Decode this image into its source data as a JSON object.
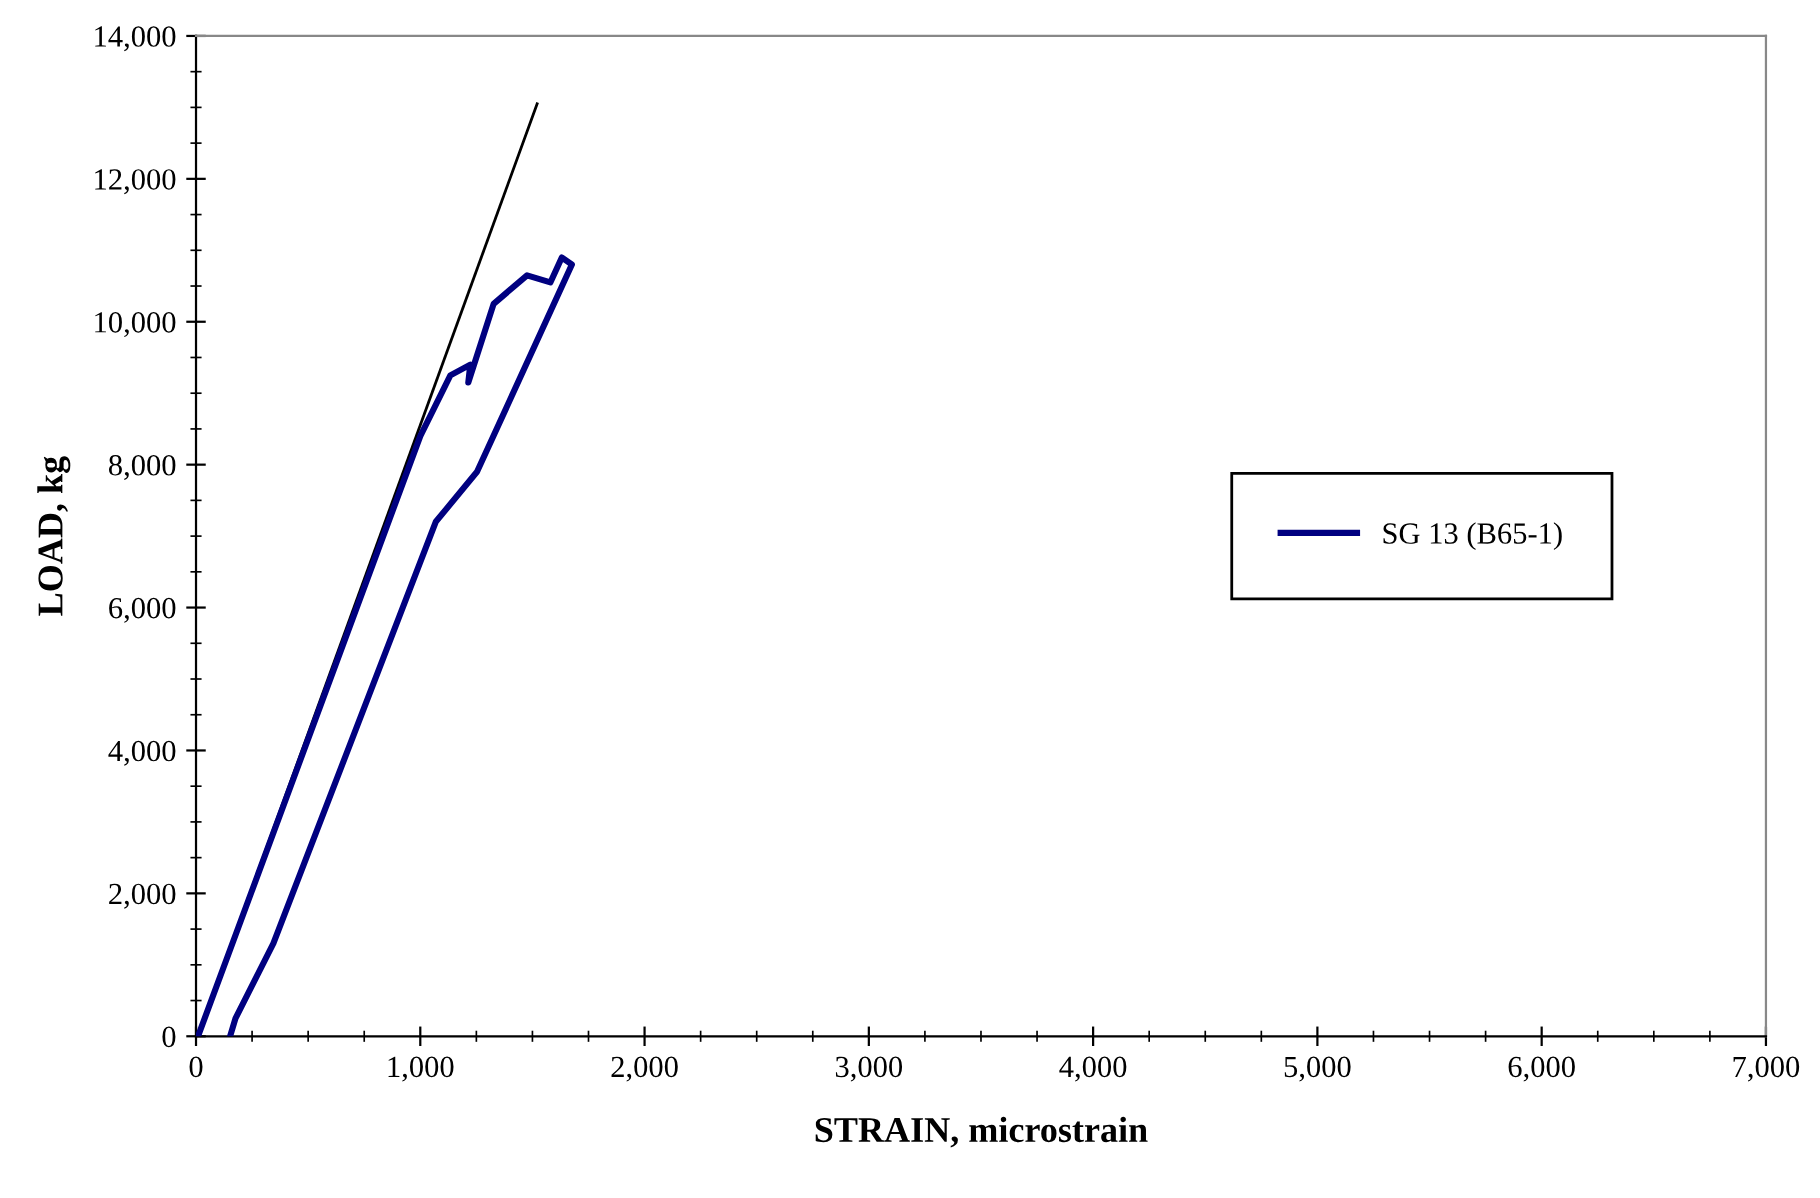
{
  "chart_data": {
    "type": "line",
    "xlabel": "STRAIN, microstrain",
    "ylabel": "LOAD, kg",
    "xlim": [
      0,
      7000
    ],
    "xticks": [
      {
        "value": 0,
        "label": "0"
      },
      {
        "value": 1000,
        "label": "1,000"
      },
      {
        "value": 2000,
        "label": "2,000"
      },
      {
        "value": 3000,
        "label": "3,000"
      },
      {
        "value": 4000,
        "label": "4,000"
      },
      {
        "value": 5000,
        "label": "5,000"
      },
      {
        "value": 6000,
        "label": "6,000"
      },
      {
        "value": 7000,
        "label": "7,000"
      }
    ],
    "ylim": [
      0,
      14000
    ],
    "yticks": [
      {
        "value": 0,
        "label": "0"
      },
      {
        "value": 2000,
        "label": "2,000"
      },
      {
        "value": 4000,
        "label": "4,000"
      },
      {
        "value": 6000,
        "label": "6,000"
      },
      {
        "value": 8000,
        "label": "8,000"
      },
      {
        "value": 10000,
        "label": "10,000"
      },
      {
        "value": 12000,
        "label": "12,000"
      },
      {
        "value": 14000,
        "label": "14,000"
      }
    ],
    "grid": false,
    "legend": "right",
    "line_style": "solid",
    "series": [
      {
        "name": "SG 13 (B65-1)",
        "color": "#000080",
        "x": [
          9,
          1000,
          1134,
          1223,
          1214,
          1327,
          1476,
          1580,
          1631,
          1676,
          1253,
          1069,
          345,
          176,
          152
        ],
        "values": [
          0,
          8400,
          9250,
          9400,
          9150,
          10250,
          10650,
          10550,
          10900,
          10800,
          7900,
          7200,
          1300,
          250,
          0
        ]
      },
      {
        "color": "#000000",
        "x": [
          9,
          1521
        ],
        "values": [
          0,
          13050
        ]
      }
    ]
  }
}
